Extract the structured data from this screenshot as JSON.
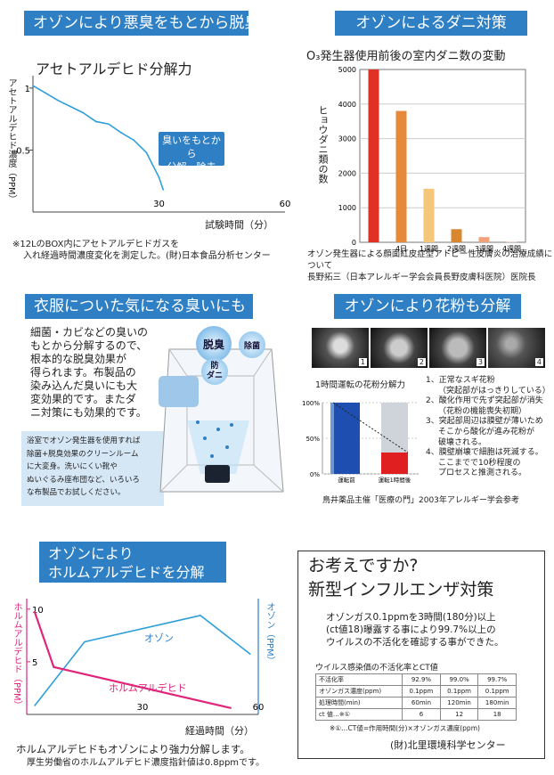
{
  "s1": {
    "title": "オゾンにより悪臭をもとから脱臭",
    "chart_title": "アセトアルデヒド分解力",
    "ylabel": "アセトアルデヒド濃度（PPM）",
    "xlabel": "試験時間（分）",
    "callout": [
      "臭いをもとから",
      "分解・除去"
    ],
    "note": [
      "※12LのBOX内にアセトアルデヒドガスを",
      "入れ経過時間濃度変化を測定した。(財)日本食品分析センター"
    ]
  },
  "s2": {
    "title": "オゾンによるダニ対策",
    "subtitle": "O₃発生器使用前後の室内ダニ数の変動",
    "ylabel": "ヒョウダニ類の数",
    "note": [
      "オゾン発生器による顔面紅皮症型アトピー性皮膚炎の治療成績について",
      "長野拓三（日本アレルギー学会会員長野皮膚科医院）医院長"
    ]
  },
  "s3": {
    "title": "衣服についた気になる臭いにも",
    "text": [
      "細菌・カビなどの臭いの",
      "もとから分解するので、",
      "根本的な脱臭効果が",
      "得られます。布製品の",
      "染み込んだ臭いにも大",
      "変効果的です。またダ",
      "ニ対策にも効果的です。"
    ],
    "box": [
      "浴室でオゾン発生器を使用すれば",
      "除菌+脱臭効果のクリーンルーム",
      "に大変身。洗いにくい靴や",
      "ぬいぐるみ座布団など、いろいろ",
      "な布製品でお試しください。"
    ],
    "bubbles": [
      "脱臭",
      "除菌",
      "防",
      "ダニ"
    ]
  },
  "s4": {
    "title": "オゾンにより花粉も分解",
    "photo_nums": [
      "1",
      "2",
      "3",
      "4"
    ],
    "chart_title": "1時間運転の花粉分解力",
    "legend": [
      "1、正常なスギ花粉",
      "（突起部がはっきりしている）",
      "2、酸化作用で先ず突起部が消失",
      "（花粉の機能喪失初期）",
      "3、突起部周辺は膜壁が薄いため",
      "そこから酸化が進み花粉が",
      "破壊される。",
      "4、膜壁崩壊で細胞は死滅する。",
      "ここまでで10秒程度の",
      "プロセスと推測される。"
    ],
    "note": "鳥井薬品主催「医療の門」2003年アレルギー学会参考"
  },
  "s5": {
    "title": [
      "オゾンにより",
      "ホルムアルデヒドを分解"
    ],
    "ylabel_left": "ホルムアルデヒド（PPM）",
    "ylabel_right": "オゾン（PPM）",
    "xlabel": "経過時間（分）",
    "series_o3": "オゾン",
    "series_hcho": "ホルムアルデヒド",
    "note": [
      "ホルムアルデヒドもオゾンにより強力分解します。",
      "厚生労働省のホルムアルデヒド濃度指針値は0.8ppmです。"
    ]
  },
  "s6": {
    "title": [
      "お考えですか?",
      "新型インフルエンザ対策"
    ],
    "text": [
      "オゾンガス0.1ppmを3時間(180分)以上",
      "(ct値18)曝露する事により99.7%以上の",
      "ウイルスの不活化を確認する事ができた。"
    ],
    "table_title": "ウイルス感染価の不活化率とCT値",
    "table": {
      "rows": [
        [
          "不活化率",
          "92.9%",
          "99.0%",
          "99.7%"
        ],
        [
          "オゾンガス濃度(ppm)",
          "0.1ppm",
          "0.1ppm",
          "0.1ppm"
        ],
        [
          "処理時間(min)",
          "60min",
          "120min",
          "180min"
        ],
        [
          "ct 値…※①",
          "6",
          "12",
          "18"
        ]
      ]
    },
    "footnote": "※①…CT値=作用時間(分)×オゾンガス濃度(ppm)",
    "org": "(財)北里環境科学センター"
  },
  "chart_data": [
    {
      "type": "line",
      "title": "アセトアルデヒド分解力",
      "xlabel": "試験時間（分）",
      "ylabel": "アセトアルデヒド濃度（PPM）",
      "x_ticks": [
        "30",
        "60"
      ],
      "y_ticks": [
        "1",
        "0.5"
      ],
      "xlim": [
        0,
        60
      ],
      "ylim": [
        0,
        1.1
      ],
      "x": [
        0,
        3,
        6,
        9,
        12,
        15,
        18,
        21,
        24,
        27,
        30,
        31
      ],
      "y": [
        1.02,
        0.96,
        0.9,
        0.85,
        0.8,
        0.73,
        0.71,
        0.64,
        0.58,
        0.48,
        0.28,
        0.18
      ]
    },
    {
      "type": "bar",
      "categories": [
        "",
        "4日",
        "1週間",
        "2週間",
        "3週間",
        "4週間"
      ],
      "values": [
        5000,
        3800,
        1550,
        380,
        150,
        10
      ],
      "ylim": [
        0,
        5000
      ],
      "y_ticks": [
        "5000",
        "4000",
        "3000",
        "2000",
        "1000",
        "0"
      ],
      "colors": [
        "#e03224",
        "#e68a3a",
        "#f5c77a",
        "#d8872f",
        "#f0a27a",
        "#f6c8b0"
      ]
    },
    {
      "type": "bar",
      "title": "1時間運転の花粉分解力",
      "categories": [
        "運転前",
        "運転1時間後"
      ],
      "values": [
        100,
        30
      ],
      "y_ticks": [
        "100%",
        "50%",
        "0%"
      ],
      "ylim": [
        0,
        100
      ]
    },
    {
      "type": "line",
      "xlabel": "経過時間（分）",
      "x_ticks": [
        "30",
        "60"
      ],
      "y_ticks": [
        "10",
        "5"
      ],
      "series": [
        {
          "name": "オゾン",
          "x": [
            2,
            15,
            45,
            58
          ],
          "y": [
            0.8,
            6.9,
            9.4,
            5.7
          ]
        },
        {
          "name": "ホルムアルデヒド",
          "x": [
            2,
            7,
            53
          ],
          "y": [
            9.8,
            4.5,
            0.6
          ]
        }
      ]
    }
  ]
}
